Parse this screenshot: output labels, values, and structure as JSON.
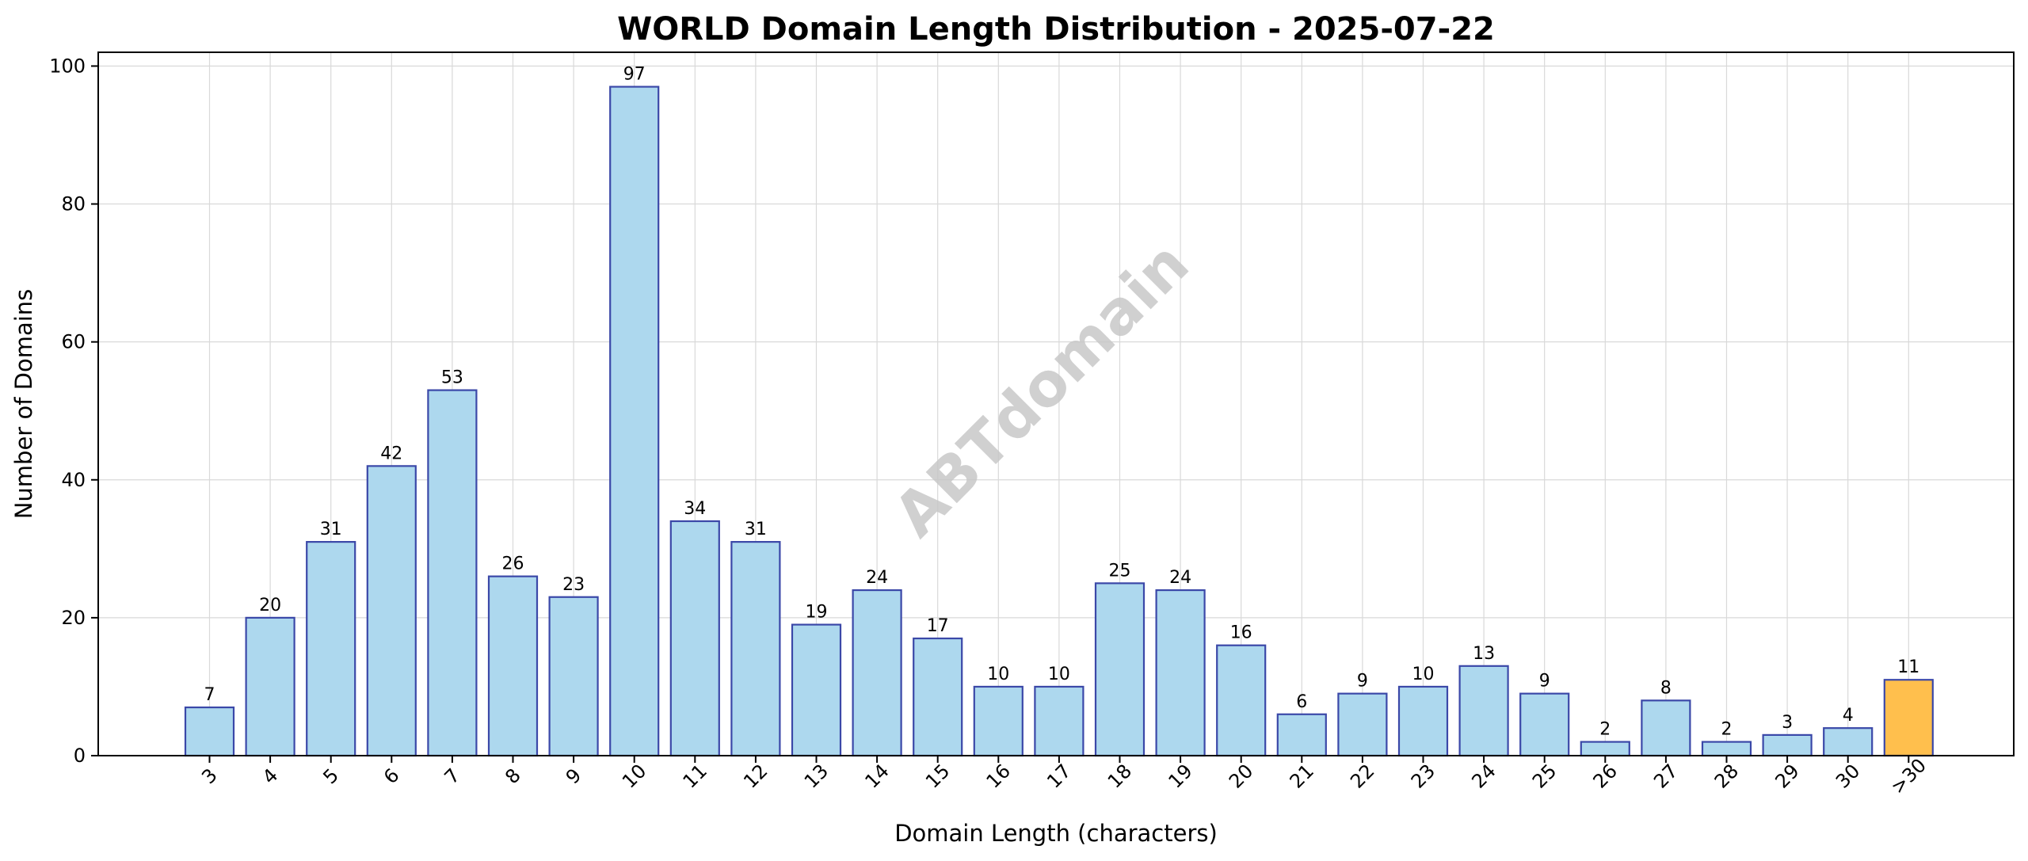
{
  "watermark": "ABTdomain",
  "chart_data": {
    "type": "bar",
    "title": "WORLD Domain Length Distribution - 2025-07-22",
    "xlabel": "Domain Length (characters)",
    "ylabel": "Number of Domains",
    "categories": [
      "3",
      "4",
      "5",
      "6",
      "7",
      "8",
      "9",
      "10",
      "11",
      "12",
      "13",
      "14",
      "15",
      "16",
      "17",
      "18",
      "19",
      "20",
      "21",
      "22",
      "23",
      "24",
      "25",
      "26",
      "27",
      "28",
      "29",
      "30",
      ">30"
    ],
    "values": [
      7,
      20,
      31,
      42,
      53,
      26,
      23,
      97,
      34,
      31,
      19,
      24,
      17,
      10,
      10,
      25,
      24,
      16,
      6,
      9,
      10,
      13,
      9,
      2,
      8,
      2,
      3,
      4,
      11
    ],
    "ylim": [
      0,
      102
    ],
    "yticks": [
      0,
      20,
      40,
      60,
      80,
      100
    ],
    "grid": true,
    "colors": {
      "bar": "#add8ee",
      "bar_edge": "#3b48a8",
      "highlight": "#ffbf4d",
      "highlight_edge": "#3b48a8"
    },
    "highlight_category": ">30"
  }
}
